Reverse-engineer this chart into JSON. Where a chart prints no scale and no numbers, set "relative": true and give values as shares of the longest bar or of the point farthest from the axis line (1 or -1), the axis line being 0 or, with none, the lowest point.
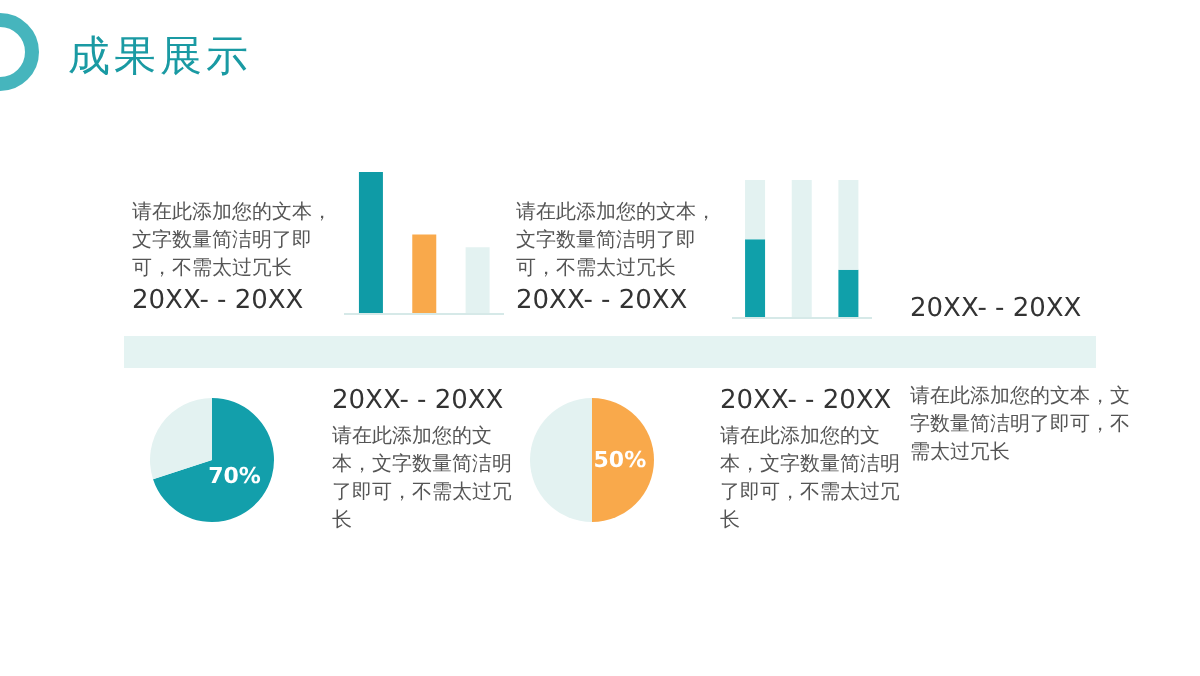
{
  "chart_data": [
    {
      "type": "other",
      "title": "成果展示"
    },
    {
      "type": "other",
      "title": "20XX- - 20XX",
      "annotations": [
        "请在此添加您的文本，文字数量简洁明了即可，不需太过冗长"
      ]
    },
    {
      "type": "bar",
      "relative": true,
      "categories": [
        null,
        null,
        null
      ],
      "values": [
        1,
        0.56,
        0.47
      ],
      "colors": [
        "#0f9ba6",
        "#f9a94b",
        "#e3f2f1"
      ]
    },
    {
      "type": "other",
      "title": "20XX- - 20XX",
      "annotations": [
        "请在此添加您的文本，文字数量简洁明了即可，不需太过冗长"
      ]
    },
    {
      "type": "bar",
      "relative": true,
      "stacked": true,
      "categories": [
        null,
        null,
        null
      ],
      "series": [
        {
          "color": "#10a0aa",
          "values": [
            0.57,
            0,
            0.35
          ]
        },
        {
          "color": "#e3f2f1",
          "values": [
            0.43,
            1,
            0.65
          ]
        }
      ]
    },
    {
      "type": "other",
      "title": "20XX- - 20XX",
      "annotations": [
        "请在此添加您的文本，文字数量简洁明了即可，不需太过冗长"
      ]
    },
    {
      "type": "pie",
      "categories": [
        null,
        null
      ],
      "values": [
        70,
        30
      ],
      "colors": [
        "#139fab",
        "#e3f2f1"
      ],
      "value_labels": [
        "70%",
        null
      ]
    },
    {
      "type": "other",
      "title": "20XX- - 20XX",
      "annotations": [
        "请在此添加您的文本，文字数量简洁明了即可，不需太过冗长"
      ]
    },
    {
      "type": "pie",
      "categories": [
        null,
        null
      ],
      "values": [
        50,
        50
      ],
      "colors": [
        "#f9a94b",
        "#e3f2f1"
      ],
      "value_labels": [
        "50%",
        null
      ]
    },
    {
      "type": "other",
      "title": "20XX- - 20XX",
      "annotations": [
        "请在此添加您的文本，文字数量简洁明了即可，不需太过冗长"
      ]
    }
  ]
}
